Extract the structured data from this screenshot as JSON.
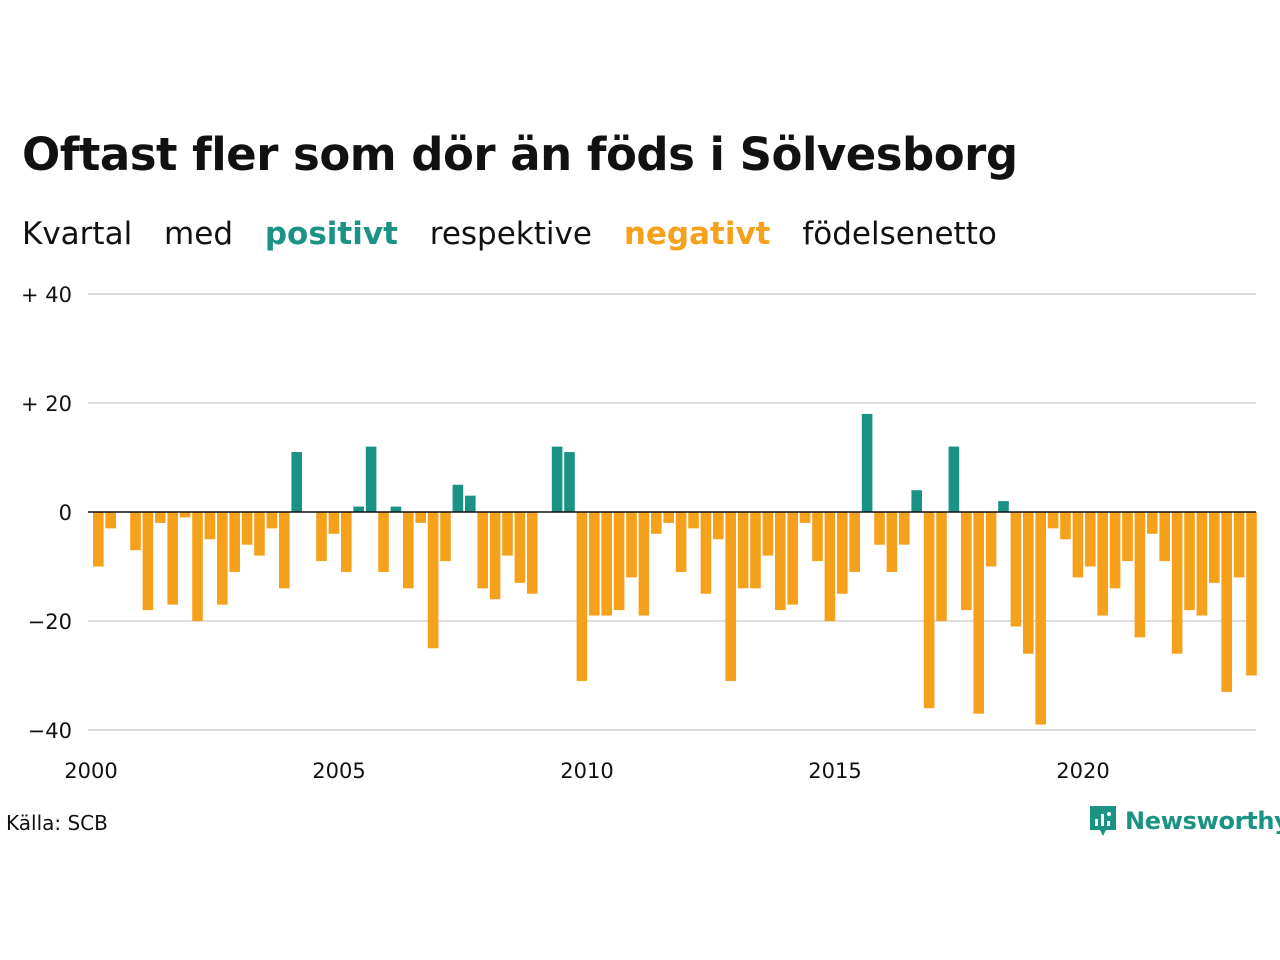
{
  "title": "Oftast fler som dör än föds i Sölvesborg",
  "subtitle": {
    "w1": "Kvartal",
    "w2": "med",
    "positive": "positivt",
    "w3": "respektive",
    "negative": "negativt",
    "w4": "födelsenetto"
  },
  "colors": {
    "positive": "#1a9385",
    "negative": "#f5a11c",
    "grid": "#dddddd",
    "zero": "#111111"
  },
  "source": "Källa: SCB",
  "logo": {
    "text": "Newsworthy",
    "icon": "chart-bubble-icon"
  },
  "chart_data": {
    "type": "bar",
    "title": "Oftast fler som dör än föds i Sölvesborg",
    "xlabel": "",
    "ylabel": "",
    "ylim": [
      -40,
      40
    ],
    "yticks": [
      {
        "value": 40,
        "label": "+ 40"
      },
      {
        "value": 20,
        "label": "+ 20"
      },
      {
        "value": 0,
        "label": "0"
      },
      {
        "value": -20,
        "label": "−20"
      },
      {
        "value": -40,
        "label": "−40"
      }
    ],
    "xticks": [
      "2000",
      "2005",
      "2010",
      "2015",
      "2020"
    ],
    "grid": true,
    "start": "2000 Q1",
    "values": [
      -10,
      -3,
      0,
      -7,
      -18,
      -2,
      -17,
      -1,
      -20,
      -5,
      -17,
      -11,
      -6,
      -8,
      -3,
      -14,
      11,
      0,
      -9,
      -4,
      -11,
      1,
      12,
      -11,
      1,
      -14,
      -2,
      -25,
      -9,
      5,
      3,
      -14,
      -16,
      -8,
      -13,
      -15,
      0,
      12,
      11,
      -31,
      -19,
      -19,
      -18,
      -12,
      -19,
      -4,
      -2,
      -11,
      -3,
      -15,
      -5,
      -31,
      -14,
      -14,
      -8,
      -18,
      -17,
      -2,
      -9,
      -20,
      -15,
      -11,
      18,
      -6,
      -11,
      -6,
      4,
      -36,
      -20,
      12,
      -18,
      -37,
      -10,
      2,
      -21,
      -26,
      -39,
      -3,
      -5,
      -12,
      -10,
      -19,
      -14,
      -9,
      -23,
      -4,
      -9,
      -26,
      -18,
      -19,
      -13,
      -33,
      -12,
      -30
    ]
  }
}
